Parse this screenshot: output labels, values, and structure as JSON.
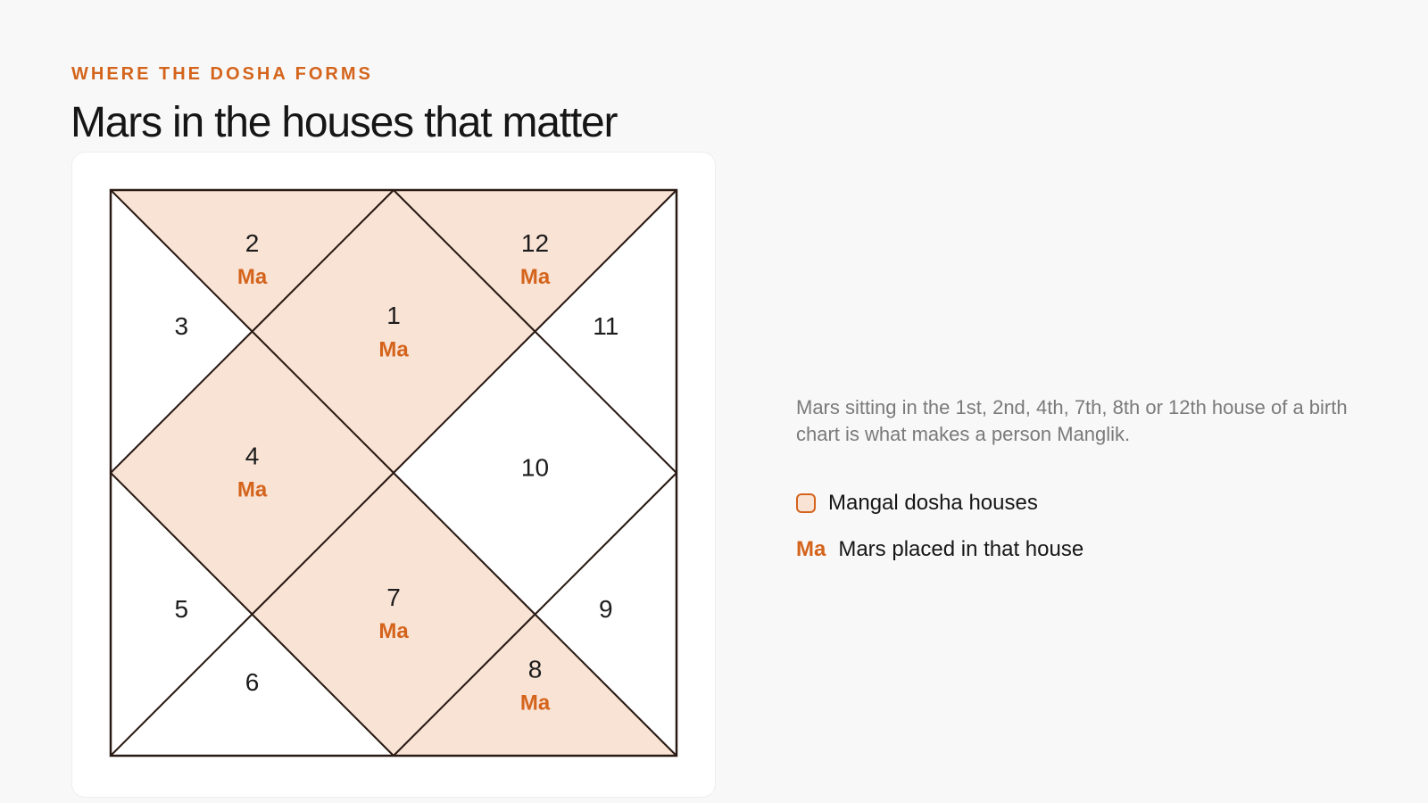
{
  "header": {
    "eyebrow": "WHERE THE DOSHA FORMS",
    "title": "Mars in the houses that matter"
  },
  "chart": {
    "highlight_color": "#f9e3d5",
    "accent_color": "#d4641c",
    "line_color": "#2a1a14",
    "houses": [
      {
        "label": "1",
        "highlighted": true,
        "planet": "Ma"
      },
      {
        "label": "2",
        "highlighted": true,
        "planet": "Ma"
      },
      {
        "label": "3",
        "highlighted": false
      },
      {
        "label": "4",
        "highlighted": true,
        "planet": "Ma"
      },
      {
        "label": "5",
        "highlighted": false
      },
      {
        "label": "6",
        "highlighted": false
      },
      {
        "label": "7",
        "highlighted": true,
        "planet": "Ma"
      },
      {
        "label": "8",
        "highlighted": true,
        "planet": "Ma"
      },
      {
        "label": "9",
        "highlighted": false
      },
      {
        "label": "10",
        "highlighted": false
      },
      {
        "label": "11",
        "highlighted": false
      },
      {
        "label": "12",
        "highlighted": true,
        "planet": "Ma"
      }
    ]
  },
  "description": "Mars sitting in the 1st, 2nd, 4th, 7th, 8th or 12th house of a birth chart is what makes a person Manglik.",
  "legend": [
    {
      "label": "Mangal dosha houses"
    },
    {
      "marker": "Ma",
      "label": "Mars placed in that house"
    }
  ]
}
